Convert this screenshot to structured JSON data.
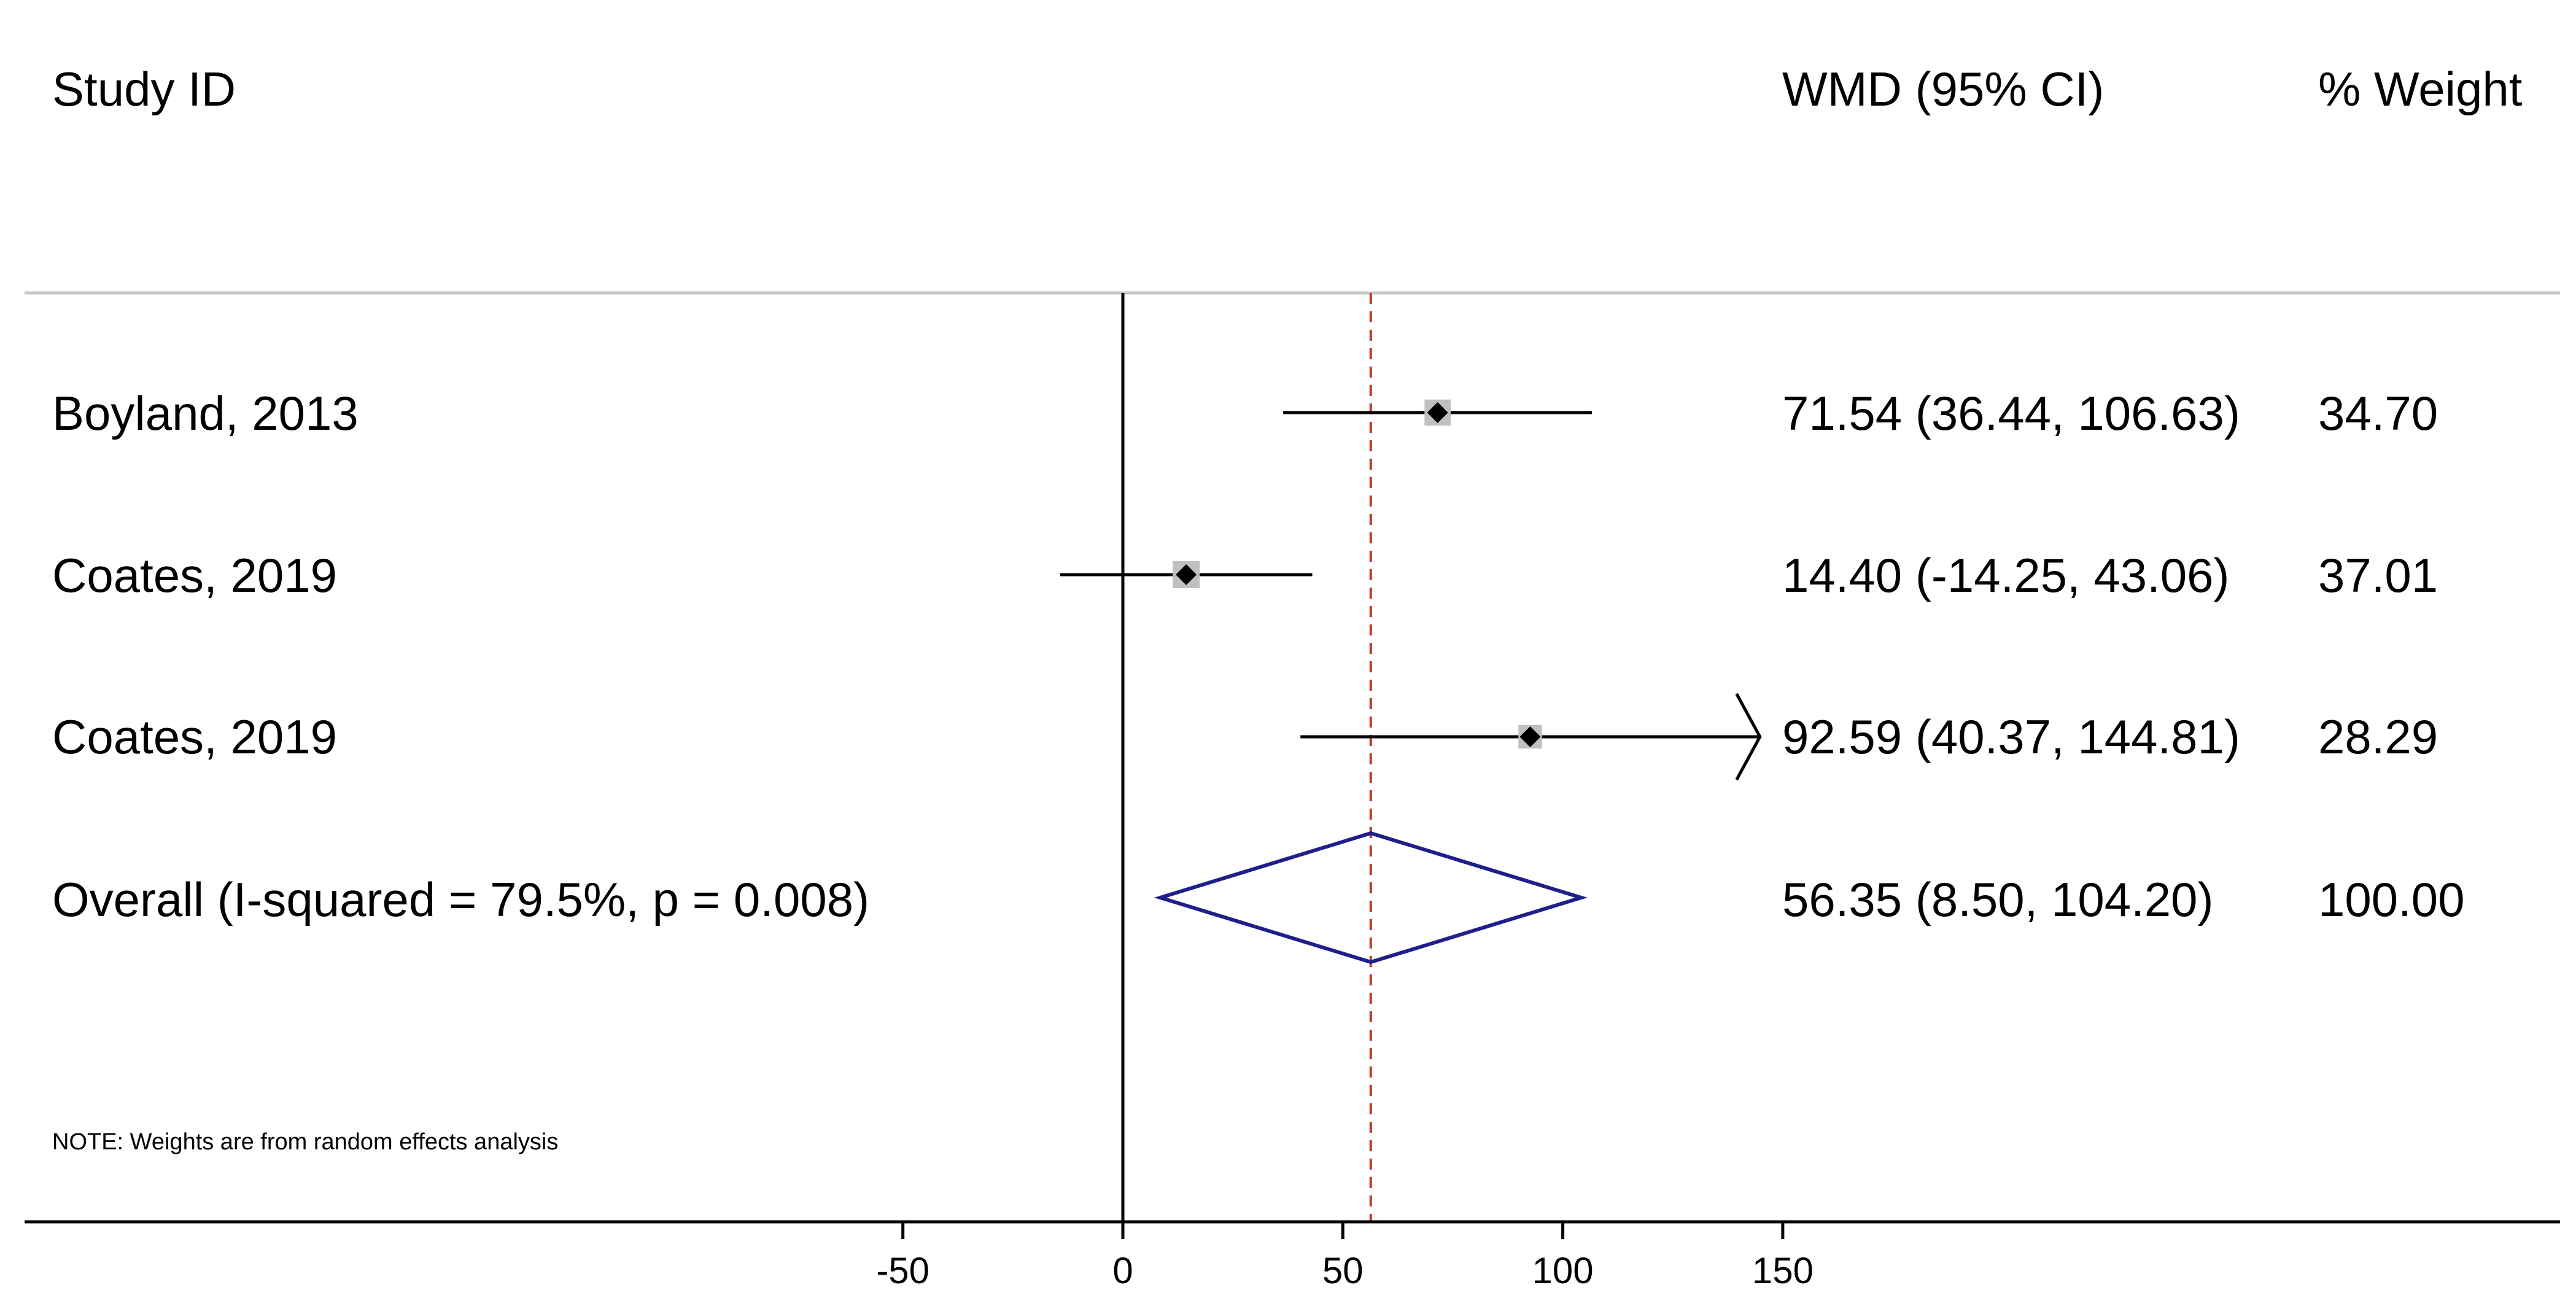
{
  "headers": {
    "study": "Study ID",
    "effect": "WMD (95% CI)",
    "weight": "% Weight"
  },
  "note": "NOTE: Weights are from random effects analysis",
  "colors": {
    "axis": "#000000",
    "ci_line": "#000000",
    "weight_box": "#c0c0c0",
    "point": "#000000",
    "diamond": "#1f1f8a",
    "ref_line": "#c0392b",
    "separator": "#c8c8c8"
  },
  "chart_data": {
    "type": "forest",
    "measure": "WMD",
    "null_value": 0,
    "xlim": [
      -50,
      150
    ],
    "ticks": [
      -50,
      0,
      50,
      100,
      150
    ],
    "overall_reference": 56.35,
    "studies": [
      {
        "label": "Boyland, 2013",
        "estimate": 71.54,
        "lower": 36.44,
        "upper": 106.63,
        "weight": 34.7,
        "ci_text": "71.54 (36.44, 106.63)",
        "weight_text": "34.70"
      },
      {
        "label": "Coates, 2019",
        "estimate": 14.4,
        "lower": -14.25,
        "upper": 43.06,
        "weight": 37.01,
        "ci_text": "14.40 (-14.25, 43.06)",
        "weight_text": "37.01"
      },
      {
        "label": "Coates, 2019",
        "estimate": 92.59,
        "lower": 40.37,
        "upper": 144.81,
        "weight": 28.29,
        "ci_text": "92.59 (40.37, 144.81)",
        "weight_text": "28.29",
        "truncated_upper": true
      }
    ],
    "overall": {
      "label": "Overall  (I-squared = 79.5%, p = 0.008)",
      "estimate": 56.35,
      "lower": 8.5,
      "upper": 104.2,
      "ci_text": "56.35 (8.50, 104.20)",
      "weight_text": "100.00"
    }
  }
}
